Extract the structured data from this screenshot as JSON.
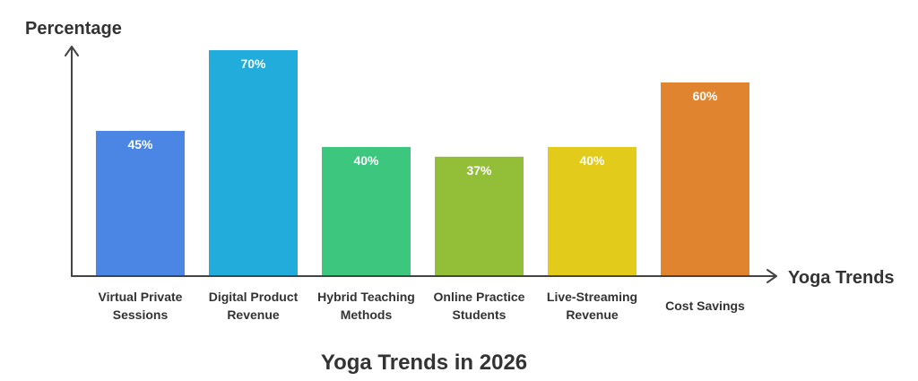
{
  "chart_data": {
    "type": "bar",
    "title": "Yoga Trends in 2026",
    "xlabel": "Yoga Trends",
    "ylabel": "Percentage",
    "categories": [
      [
        "Virtual Private",
        "Sessions"
      ],
      [
        "Digital Product",
        "Revenue"
      ],
      [
        "Hybrid Teaching",
        "Methods"
      ],
      [
        "Online Practice",
        "Students"
      ],
      [
        "Live-Streaming",
        "Revenue"
      ],
      [
        "Cost Savings"
      ]
    ],
    "values": [
      45,
      70,
      40,
      37,
      40,
      60
    ],
    "value_labels": [
      "45%",
      "70%",
      "40%",
      "37%",
      "40%",
      "60%"
    ],
    "colors": [
      "#4b86e4",
      "#21acdb",
      "#3dc77e",
      "#93bf38",
      "#e2cb1a",
      "#e0842f"
    ],
    "ylim": [
      0,
      80
    ],
    "grid": false,
    "legend": "none"
  }
}
